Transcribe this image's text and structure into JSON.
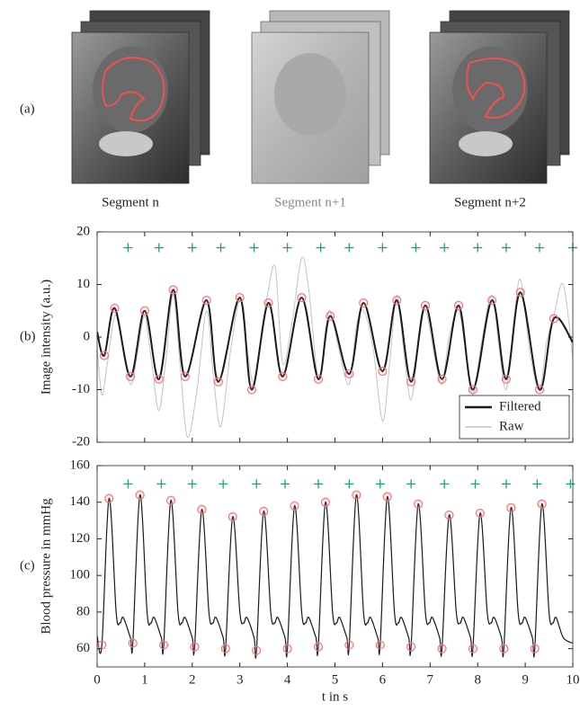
{
  "panel_a": {
    "label": "(a)",
    "captions": [
      "Segment n",
      "Segment n+1",
      "Segment n+2"
    ]
  },
  "chart_data": [
    {
      "type": "line",
      "label": "(b)",
      "ylabel": "Image intensity (a.u.)",
      "xlim": [
        0,
        10
      ],
      "xticks": [
        0,
        1,
        2,
        3,
        4,
        5,
        6,
        7,
        8,
        9,
        10
      ],
      "show_xtick_labels": false,
      "ylim": [
        -20,
        20
      ],
      "yticks": [
        -20,
        -10,
        0,
        10,
        20
      ],
      "grid": false,
      "legend": "lower right",
      "series": [
        {
          "name": "Filtered",
          "color": "#1a1a1a",
          "x": [
            0,
            0.15,
            0.37,
            0.7,
            1.0,
            1.3,
            1.6,
            1.85,
            2.3,
            2.55,
            3.0,
            3.25,
            3.6,
            3.9,
            4.3,
            4.65,
            4.9,
            5.3,
            5.6,
            6.0,
            6.3,
            6.6,
            6.9,
            7.25,
            7.6,
            7.9,
            8.3,
            8.6,
            8.9,
            9.3,
            9.6,
            10
          ],
          "values": [
            1,
            -3.5,
            5.5,
            -7.5,
            5,
            -8,
            9,
            -7.5,
            7,
            -8.5,
            7.5,
            -10,
            6.5,
            -7.5,
            7.5,
            -8,
            4,
            -7,
            6.5,
            -6.5,
            7,
            -8.5,
            6,
            -8,
            6,
            -10,
            7,
            -8,
            8.5,
            -10,
            3.5,
            -1
          ]
        },
        {
          "name": "Raw",
          "color": "#c4c4c4",
          "x": [
            0,
            0.1,
            0.2,
            0.37,
            0.5,
            0.7,
            0.85,
            1.0,
            1.15,
            1.3,
            1.45,
            1.6,
            1.75,
            1.9,
            2.1,
            2.3,
            2.45,
            2.6,
            2.8,
            3.0,
            3.15,
            3.3,
            3.45,
            3.6,
            3.75,
            3.9,
            4.1,
            4.3,
            4.45,
            4.65,
            4.8,
            4.9,
            5.1,
            5.3,
            5.45,
            5.6,
            5.8,
            6.0,
            6.15,
            6.3,
            6.45,
            6.6,
            6.75,
            6.9,
            7.1,
            7.25,
            7.4,
            7.6,
            7.75,
            7.9,
            8.1,
            8.3,
            8.45,
            8.6,
            8.75,
            8.9,
            9.1,
            9.3,
            9.45,
            9.6,
            9.8,
            10
          ],
          "values": [
            -2,
            -11,
            -6,
            4,
            0,
            -9,
            -3,
            4,
            -5,
            -14,
            -4,
            8,
            -6,
            -19,
            -10,
            5,
            -8,
            -17,
            -3,
            7,
            -2,
            -9,
            0,
            9,
            13,
            -5,
            3,
            15,
            9,
            -8,
            1,
            5,
            -3,
            -9,
            2,
            5,
            -2,
            -16,
            -5,
            8,
            -3,
            -12,
            -2,
            5,
            -4,
            -9,
            0,
            5,
            -3,
            -11,
            0,
            8,
            -2,
            -10,
            2,
            11,
            -3,
            -10,
            -1,
            4,
            10,
            -4
          ]
        },
        {
          "marker": "circle",
          "color": "#f07a80",
          "x": [
            0.15,
            0.37,
            0.7,
            1.0,
            1.3,
            1.6,
            1.85,
            2.3,
            2.55,
            3.0,
            3.25,
            3.6,
            3.9,
            4.3,
            4.65,
            4.9,
            5.3,
            5.6,
            6.0,
            6.3,
            6.6,
            6.9,
            7.25,
            7.6,
            7.9,
            8.3,
            8.6,
            8.9,
            9.3,
            9.6
          ],
          "values": [
            -3.5,
            5.5,
            -7.5,
            5,
            -8,
            9,
            -7.5,
            7,
            -8.5,
            7.5,
            -10,
            6.5,
            -7.5,
            7.5,
            -8,
            4,
            -7,
            6.5,
            -6.5,
            7,
            -8.5,
            6,
            -8,
            6,
            -10,
            7,
            -8,
            8.5,
            -10,
            3.5
          ]
        },
        {
          "marker": "plus",
          "color": "#2a9d7a",
          "x": [
            0.65,
            1.3,
            2.0,
            2.6,
            3.3,
            4.0,
            4.7,
            5.3,
            6.0,
            6.7,
            7.3,
            8.0,
            8.6,
            9.3,
            10.0
          ],
          "values": [
            17,
            17,
            17,
            17,
            17,
            17,
            17,
            17,
            17,
            17,
            17,
            17,
            17,
            17,
            17
          ]
        }
      ]
    },
    {
      "type": "line",
      "label": "(c)",
      "ylabel": "Blood pressure in mmHg",
      "xlabel": "t in s",
      "xlim": [
        0,
        10
      ],
      "xticks": [
        0,
        1,
        2,
        3,
        4,
        5,
        6,
        7,
        8,
        9,
        10
      ],
      "show_xtick_labels": true,
      "ylim": [
        50,
        160
      ],
      "yticks": [
        60,
        80,
        100,
        120,
        140,
        160
      ],
      "grid": false,
      "series": [
        {
          "color": "#1a1a1a",
          "x": [
            0,
            0.1,
            0.25,
            0.4,
            0.48,
            0.55,
            0.7,
            0.75,
            0.9,
            1.05,
            1.13,
            1.2,
            1.35,
            1.4,
            1.55,
            1.7,
            1.78,
            1.85,
            2.0,
            2.05,
            2.2,
            2.35,
            2.43,
            2.5,
            2.65,
            2.7,
            2.85,
            3.0,
            3.08,
            3.15,
            3.3,
            3.35,
            3.5,
            3.65,
            3.73,
            3.8,
            3.95,
            4.0,
            4.15,
            4.3,
            4.38,
            4.45,
            4.6,
            4.65,
            4.8,
            4.95,
            5.03,
            5.1,
            5.25,
            5.3,
            5.45,
            5.6,
            5.68,
            5.75,
            5.9,
            5.95,
            6.1,
            6.25,
            6.33,
            6.4,
            6.55,
            6.6,
            6.75,
            6.9,
            6.98,
            7.05,
            7.2,
            7.25,
            7.4,
            7.55,
            7.63,
            7.7,
            7.85,
            7.9,
            8.05,
            8.2,
            8.28,
            8.35,
            8.5,
            8.55,
            8.7,
            8.85,
            8.93,
            9.0,
            9.15,
            9.2,
            9.35,
            9.5,
            9.58,
            9.65,
            9.8,
            10.0
          ],
          "values": [
            67,
            62,
            142,
            80,
            74,
            77,
            66,
            63,
            144,
            80,
            74,
            77,
            66,
            62,
            141,
            80,
            74,
            77,
            66,
            61,
            136,
            80,
            74,
            77,
            66,
            60,
            132,
            80,
            74,
            77,
            66,
            59,
            135,
            80,
            74,
            77,
            66,
            60,
            138,
            80,
            74,
            77,
            66,
            61,
            140,
            80,
            74,
            77,
            66,
            62,
            144,
            80,
            74,
            77,
            66,
            62,
            143,
            80,
            74,
            77,
            66,
            61,
            139,
            80,
            74,
            77,
            66,
            60,
            133,
            80,
            74,
            77,
            66,
            60,
            134,
            80,
            74,
            77,
            66,
            60,
            137,
            80,
            74,
            77,
            66,
            60,
            139,
            80,
            74,
            77,
            66,
            63
          ]
        },
        {
          "marker": "circle",
          "color": "#f07a80",
          "x": [
            0.1,
            0.25,
            0.75,
            0.9,
            1.4,
            1.55,
            2.05,
            2.2,
            2.7,
            2.85,
            3.35,
            3.5,
            4.0,
            4.15,
            4.65,
            4.8,
            5.3,
            5.45,
            5.95,
            6.1,
            6.6,
            6.75,
            7.25,
            7.4,
            7.9,
            8.05,
            8.55,
            8.7,
            9.2,
            9.35
          ],
          "values": [
            62,
            142,
            63,
            144,
            62,
            141,
            61,
            136,
            60,
            132,
            59,
            135,
            60,
            138,
            61,
            140,
            62,
            144,
            62,
            143,
            61,
            139,
            60,
            133,
            60,
            134,
            60,
            137,
            60,
            139
          ]
        },
        {
          "marker": "plus",
          "color": "#2a9d7a",
          "x": [
            0.65,
            1.35,
            2.0,
            2.65,
            3.35,
            3.95,
            4.65,
            5.3,
            5.95,
            6.6,
            7.3,
            7.95,
            8.6,
            9.25,
            9.95
          ],
          "values": [
            150,
            150,
            150,
            150,
            150,
            150,
            150,
            150,
            150,
            150,
            150,
            150,
            150,
            150,
            150
          ]
        }
      ]
    }
  ]
}
